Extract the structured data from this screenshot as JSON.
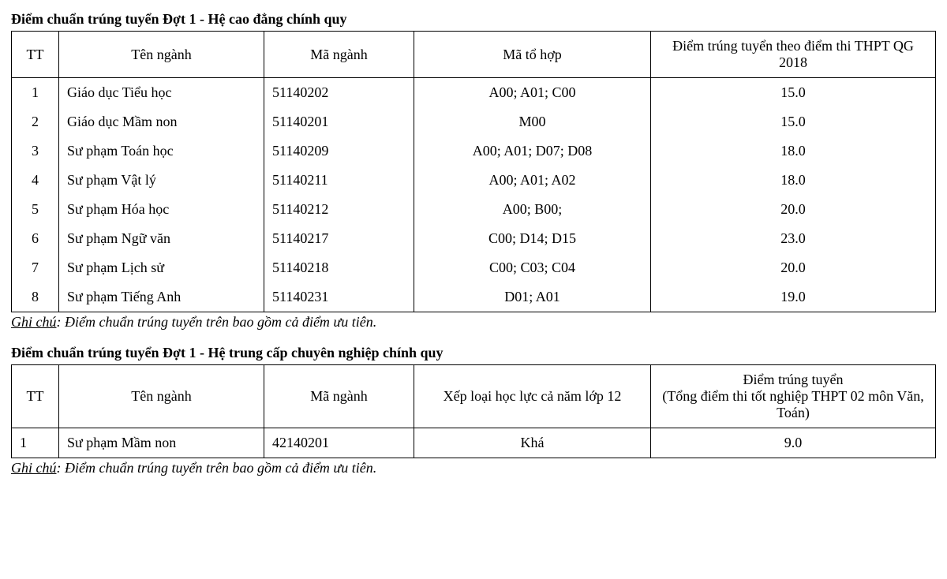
{
  "colors": {
    "text": "#000000",
    "background": "#ffffff",
    "border": "#000000"
  },
  "typography": {
    "font_family": "Times New Roman",
    "base_font_size_pt": 14
  },
  "table1": {
    "title": "Điểm chuẩn trúng tuyển Đợt 1 - Hệ cao đẳng chính quy",
    "columns": {
      "tt": "TT",
      "name": "Tên ngành",
      "code": "Mã ngành",
      "comb": "Mã tổ hợp",
      "score": "Điểm trúng tuyển theo điểm thi THPT QG 2018"
    },
    "rows": [
      {
        "tt": "1",
        "name": "Giáo dục Tiểu học",
        "code": "51140202",
        "comb": "A00; A01; C00",
        "score": "15.0"
      },
      {
        "tt": "2",
        "name": "Giáo dục Mầm non",
        "code": "51140201",
        "comb": "M00",
        "score": "15.0"
      },
      {
        "tt": "3",
        "name": "Sư phạm Toán học",
        "code": "51140209",
        "comb": "A00; A01; D07; D08",
        "score": "18.0"
      },
      {
        "tt": "4",
        "name": "Sư phạm Vật lý",
        "code": "51140211",
        "comb": "A00; A01; A02",
        "score": "18.0"
      },
      {
        "tt": "5",
        "name": "Sư phạm Hóa học",
        "code": "51140212",
        "comb": "A00; B00;",
        "score": "20.0"
      },
      {
        "tt": "6",
        "name": "Sư phạm Ngữ văn",
        "code": "51140217",
        "comb": "C00; D14; D15",
        "score": "23.0"
      },
      {
        "tt": "7",
        "name": "Sư phạm Lịch sử",
        "code": "51140218",
        "comb": "C00; C03; C04",
        "score": "20.0"
      },
      {
        "tt": "8",
        "name": "Sư phạm  Tiếng Anh",
        "code": "51140231",
        "comb": "D01; A01",
        "score": "19.0"
      }
    ],
    "footnote_label": "Ghi chú",
    "footnote_text": ": Điểm chuẩn trúng tuyển trên bao gồm cả điểm ưu tiên."
  },
  "table2": {
    "title": "Điểm chuẩn trúng tuyển Đợt 1 - Hệ trung cấp chuyên nghiệp chính quy",
    "columns": {
      "tt": "TT",
      "name": "Tên ngành",
      "code": "Mã ngành",
      "comb": "Xếp loại học lực cả năm lớp 12",
      "score_line1": "Điểm trúng tuyển",
      "score_line2": "(Tổng điểm thi tốt nghiệp THPT 02 môn Văn, Toán)"
    },
    "rows": [
      {
        "tt": "1",
        "name": "Sư phạm Mầm non",
        "code": "42140201",
        "comb": "Khá",
        "score": "9.0"
      }
    ],
    "footnote_label": "Ghi chú",
    "footnote_text": ": Điểm chuẩn trúng tuyển trên bao gồm cả điểm ưu tiên."
  }
}
